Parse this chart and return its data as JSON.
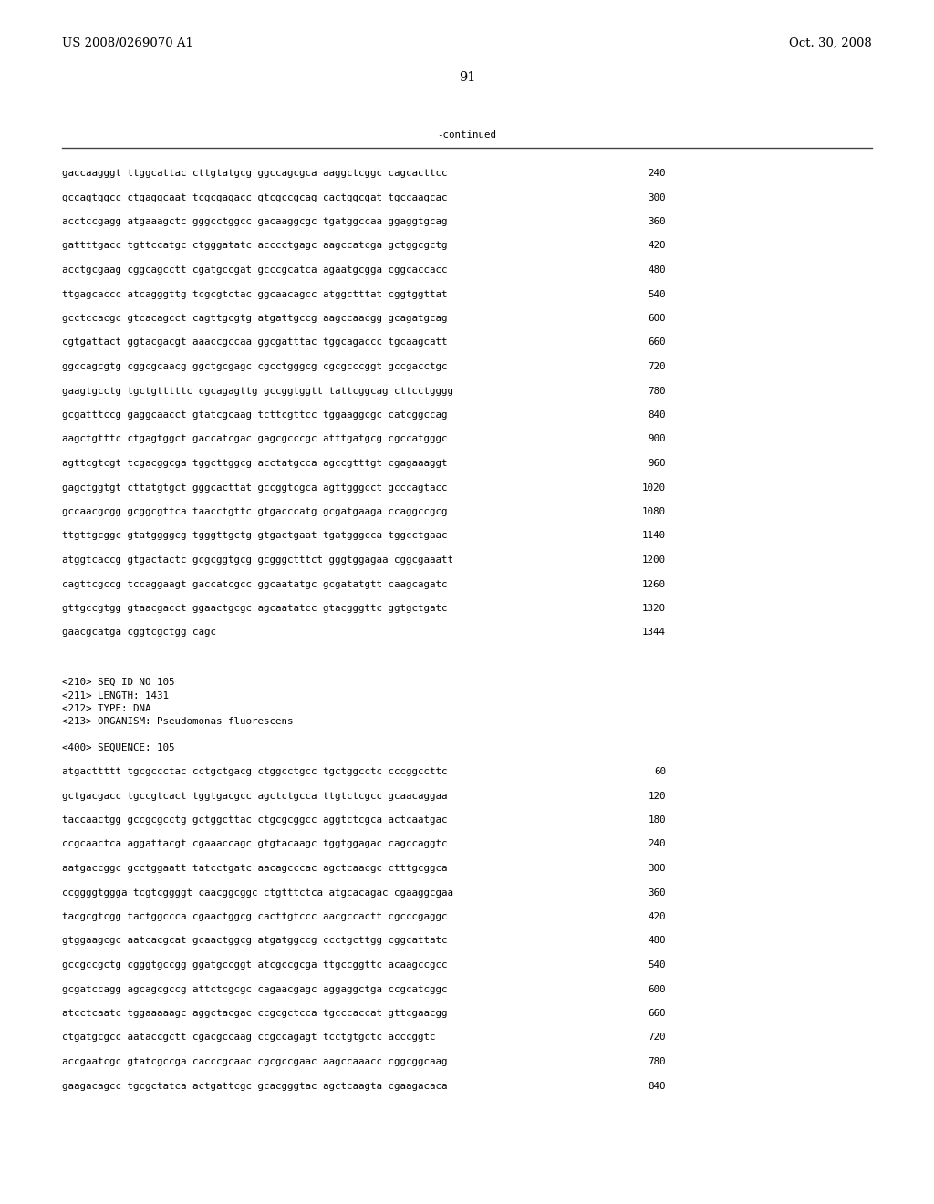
{
  "header_left": "US 2008/0269070 A1",
  "header_right": "Oct. 30, 2008",
  "page_number": "91",
  "continued_label": "-continued",
  "background_color": "#ffffff",
  "text_color": "#000000",
  "font_size_header": 9.5,
  "font_size_body": 7.8,
  "font_size_page": 10.5,
  "sequence_lines_part1": [
    [
      "gaccaagggt ttggcattac cttgtatgcg ggccagcgca aaggctcggc cagcacttcc",
      "240"
    ],
    [
      "gccagtggcc ctgaggcaat tcgcgagacc gtcgccgcag cactggcgat tgccaagcac",
      "300"
    ],
    [
      "acctccgagg atgaaagctc gggcctggcc gacaaggcgc tgatggccaa ggaggtgcag",
      "360"
    ],
    [
      "gattttgacc tgttccatgc ctgggatatc acccctgagc aagccatcga gctggcgctg",
      "420"
    ],
    [
      "acctgcgaag cggcagcctt cgatgccgat gcccgcatca agaatgcgga cggcaccacc",
      "480"
    ],
    [
      "ttgagcaccc atcagggttg tcgcgtctac ggcaacagcc atggctttat cggtggttat",
      "540"
    ],
    [
      "gcctccacgc gtcacagcct cagttgcgtg atgattgccg aagccaacgg gcagatgcag",
      "600"
    ],
    [
      "cgtgattact ggtacgacgt aaaccgccaa ggcgatttac tggcagaccc tgcaagcatt",
      "660"
    ],
    [
      "ggccagcgtg cggcgcaacg ggctgcgagc cgcctgggcg cgcgcccggt gccgacctgc",
      "720"
    ],
    [
      "gaagtgcctg tgctgtttttc cgcagagttg gccggtggtt tattcggcag cttcctgggg",
      "780"
    ],
    [
      "gcgatttccg gaggcaacct gtatcgcaag tcttcgttcc tggaaggcgc catcggccag",
      "840"
    ],
    [
      "aagctgtttc ctgagtggct gaccatcgac gagcgcccgc atttgatgcg cgccatgggc",
      "900"
    ],
    [
      "agttcgtcgt tcgacggcga tggcttggcg acctatgcca agccgtttgt cgagaaaggt",
      "960"
    ],
    [
      "gagctggtgt cttatgtgct gggcacttat gccggtcgca agttgggcct gcccagtacc",
      "1020"
    ],
    [
      "gccaacgcgg gcggcgttca taacctgttc gtgacccatg gcgatgaaga ccaggccgcg",
      "1080"
    ],
    [
      "ttgttgcggc gtatggggcg tgggttgctg gtgactgaat tgatgggcca tggcctgaac",
      "1140"
    ],
    [
      "atggtcaccg gtgactactc gcgcggtgcg gcgggctttct gggtggagaa cggcgaaatt",
      "1200"
    ],
    [
      "cagttcgccg tccaggaagt gaccatcgcc ggcaatatgc gcgatatgtt caagcagatc",
      "1260"
    ],
    [
      "gttgccgtgg gtaacgacct ggaactgcgc agcaatatcc gtacgggttc ggtgctgatc",
      "1320"
    ],
    [
      "gaacgcatga cggtcgctgg cagc",
      "1344"
    ]
  ],
  "metadata_lines": [
    "<210> SEQ ID NO 105",
    "<211> LENGTH: 1431",
    "<212> TYPE: DNA",
    "<213> ORGANISM: Pseudomonas fluorescens"
  ],
  "sequence_label": "<400> SEQUENCE: 105",
  "sequence_lines_part2": [
    [
      "atgacttttt tgcgccctac cctgctgacg ctggcctgcc tgctggcctc cccggccttc",
      "60"
    ],
    [
      "gctgacgacc tgccgtcact tggtgacgcc agctctgcca ttgtctcgcc gcaacaggaa",
      "120"
    ],
    [
      "taccaactgg gccgcgcctg gctggcttac ctgcgcggcc aggtctcgca actcaatgac",
      "180"
    ],
    [
      "ccgcaactca aggattacgt cgaaaccagc gtgtacaagc tggtggagac cagccaggtc",
      "240"
    ],
    [
      "aatgaccggc gcctggaatt tatcctgatc aacagcccac agctcaacgc ctttgcggca",
      "300"
    ],
    [
      "ccggggtggga tcgtcggggt caacggcggc ctgtttctca atgcacagac cgaaggcgaa",
      "360"
    ],
    [
      "tacgcgtcgg tactggccca cgaactggcg cacttgtccc aacgccactt cgcccgaggc",
      "420"
    ],
    [
      "gtggaagcgc aatcacgcat gcaactggcg atgatggccg ccctgcttgg cggcattatc",
      "480"
    ],
    [
      "gccgccgctg cgggtgccgg ggatgccggt atcgccgcga ttgccggttc acaagccgcc",
      "540"
    ],
    [
      "gcgatccagg agcagcgccg attctcgcgc cagaacgagc aggaggctga ccgcatcggc",
      "600"
    ],
    [
      "atcctcaatc tggaaaaagc aggctacgac ccgcgctcca tgcccaccat gttcgaacgg",
      "660"
    ],
    [
      "ctgatgcgcc aataccgctt cgacgccaag ccgccagagt tcctgtgctc acccggtc",
      "720"
    ],
    [
      "accgaatcgc gtatcgccga cacccgcaac cgcgccgaac aagccaaacc cggcggcaag",
      "780"
    ],
    [
      "gaagacagcc tgcgctatca actgattcgc gcacgggtac agctcaagta cgaagacaca",
      "840"
    ]
  ]
}
